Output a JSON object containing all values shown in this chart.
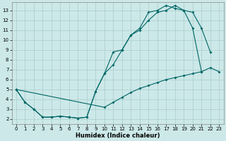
{
  "xlabel": "Humidex (Indice chaleur)",
  "background_color": "#cce8e8",
  "line_color": "#006666",
  "grid_color": "#aacccc",
  "xlim": [
    -0.5,
    23.5
  ],
  "ylim": [
    1.5,
    13.8
  ],
  "xticks": [
    0,
    1,
    2,
    3,
    4,
    5,
    6,
    7,
    8,
    9,
    10,
    11,
    12,
    13,
    14,
    15,
    16,
    17,
    18,
    19,
    20,
    21,
    22,
    23
  ],
  "yticks": [
    2,
    3,
    4,
    5,
    6,
    7,
    8,
    9,
    10,
    11,
    12,
    13
  ],
  "line1": {
    "x": [
      0,
      1,
      2,
      3,
      4,
      5,
      6,
      7,
      8,
      9,
      10,
      11,
      12,
      13,
      14,
      15,
      16,
      17,
      18,
      19,
      20,
      21
    ],
    "y": [
      5,
      3.7,
      3.0,
      2.2,
      2.2,
      2.3,
      2.2,
      2.1,
      2.2,
      4.8,
      6.6,
      8.8,
      9.0,
      10.5,
      11.2,
      12.8,
      13.0,
      13.5,
      13.2,
      13.0,
      11.2,
      6.8
    ]
  },
  "line2": {
    "x": [
      0,
      1,
      2,
      3,
      4,
      5,
      6,
      7,
      8,
      9,
      10,
      11,
      12,
      13,
      14,
      15,
      16,
      17,
      18,
      19,
      20,
      21,
      22
    ],
    "y": [
      5,
      3.7,
      3.0,
      2.2,
      2.2,
      2.3,
      2.2,
      2.1,
      2.2,
      4.8,
      6.6,
      7.5,
      9.0,
      10.5,
      11.0,
      12.0,
      12.8,
      13.0,
      13.5,
      13.0,
      12.8,
      11.2,
      8.8
    ]
  },
  "line3": {
    "x": [
      0,
      10,
      11,
      12,
      13,
      14,
      15,
      16,
      17,
      18,
      19,
      20,
      21,
      22,
      23
    ],
    "y": [
      5,
      3.2,
      3.7,
      4.2,
      4.7,
      5.1,
      5.4,
      5.7,
      6.0,
      6.2,
      6.4,
      6.6,
      6.8,
      7.2,
      6.8
    ]
  }
}
